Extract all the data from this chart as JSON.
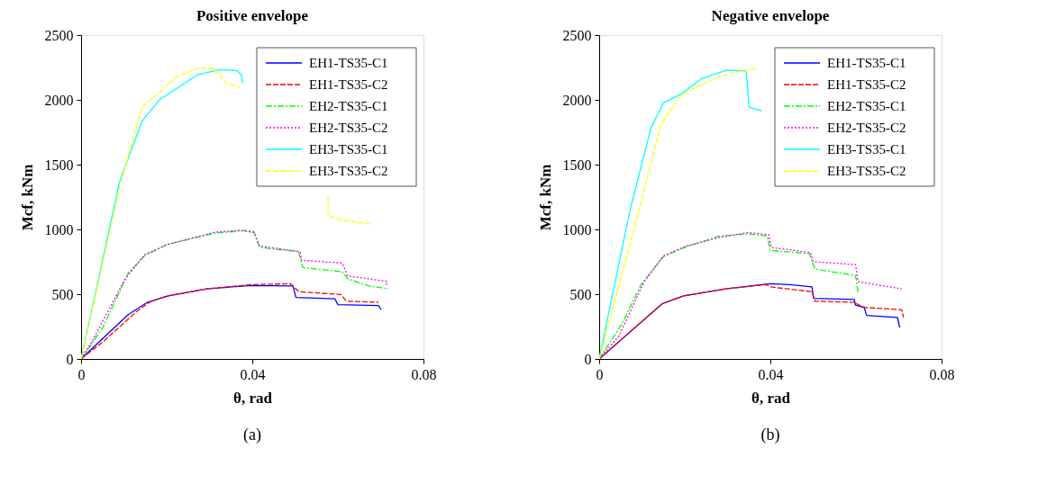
{
  "chart_data": [
    {
      "type": "line",
      "title": "Positive envelope",
      "xlabel": "θ, rad",
      "ylabel": "Mcf, kNm",
      "xlim": [
        0,
        0.08
      ],
      "xticks": [
        0,
        0.04,
        0.08
      ],
      "ylim": [
        0,
        2500
      ],
      "yticks": [
        0,
        500,
        1000,
        1500,
        2000,
        2500
      ],
      "grid": false,
      "legend": "top right",
      "annotations": [
        "(a)"
      ],
      "series": [
        {
          "name": "EH1-TS35-C1",
          "color": "#0000ff",
          "line_style": "solid",
          "x": [
            0,
            0.011,
            0.0155,
            0.0201,
            0.0293,
            0.0397,
            0.0495,
            0.0502,
            0.0593,
            0.06,
            0.0695,
            0.0701
          ],
          "values": [
            0,
            342,
            437,
            486,
            541,
            567,
            563,
            475,
            464,
            419,
            413,
            380
          ]
        },
        {
          "name": "EH1-TS35-C2",
          "color": "#ff0000",
          "line_style": "dashed",
          "x": [
            0,
            0.0051,
            0.0129,
            0.0162,
            0.0201,
            0.0293,
            0.0397,
            0.0489,
            0.0509,
            0.0607,
            0.062,
            0.0695
          ],
          "values": [
            0,
            132,
            364,
            442,
            486,
            541,
            574,
            581,
            519,
            497,
            446,
            437
          ]
        },
        {
          "name": "EH2-TS35-C1",
          "color": "#00ff00",
          "line_style": "dashdot",
          "x": [
            0,
            0.0051,
            0.011,
            0.0149,
            0.0201,
            0.0312,
            0.0391,
            0.0404,
            0.0417,
            0.0508,
            0.0518,
            0.061,
            0.0623,
            0.0672,
            0.0718
          ],
          "values": [
            0,
            243,
            662,
            799,
            883,
            971,
            993,
            982,
            861,
            828,
            706,
            673,
            618,
            565,
            541
          ]
        },
        {
          "name": "EH2-TS35-C2",
          "color": "#ff00ff",
          "line_style": "dotted",
          "x": [
            0,
            0.0025,
            0.0103,
            0.0149,
            0.0201,
            0.0312,
            0.037,
            0.0404,
            0.0417,
            0.0512,
            0.0515,
            0.061,
            0.0623,
            0.0714,
            0.0714
          ],
          "values": [
            0,
            132,
            618,
            806,
            883,
            978,
            993,
            976,
            872,
            828,
            762,
            740,
            640,
            600,
            563
          ]
        },
        {
          "name": "EH3-TS35-C1",
          "color": "#00ffff",
          "line_style": "solid",
          "x": [
            0,
            0.009,
            0.0142,
            0.0182,
            0.0273,
            0.0325,
            0.0365,
            0.0374,
            0.0378
          ],
          "values": [
            0,
            1369,
            1832,
            1998,
            2196,
            2234,
            2225,
            2196,
            2130
          ]
        },
        {
          "name": "EH3-TS35-C2",
          "color": "#ffff00",
          "line_style": "dashed",
          "x": [
            0,
            0.009,
            0.0142,
            0.0182,
            0.0221,
            0.0273,
            0.0312,
            0.0338,
            0.037,
            0.05,
            0.0577,
            0.0577,
            0.0613,
            0.0675
          ],
          "values": [
            0,
            1325,
            1943,
            2053,
            2174,
            2245,
            2241,
            2130,
            2097,
            null,
            1258,
            1104,
            1071,
            1042
          ]
        }
      ]
    },
    {
      "type": "line",
      "title": "Negative envelope",
      "xlabel": "θ, rad",
      "ylabel": "Mcf, kNm",
      "xlim": [
        0,
        0.08
      ],
      "xticks": [
        0,
        0.04,
        0.08
      ],
      "ylim": [
        0,
        2500
      ],
      "yticks": [
        0,
        500,
        1000,
        1500,
        2000,
        2500
      ],
      "grid": false,
      "legend": "top right",
      "annotations": [
        "(b)"
      ],
      "series": [
        {
          "name": "EH1-TS35-C1",
          "color": "#0000ff",
          "line_style": "solid",
          "x": [
            0,
            0.0147,
            0.0196,
            0.0295,
            0.0399,
            0.0445,
            0.0497,
            0.0501,
            0.0596,
            0.0599,
            0.0619,
            0.0625,
            0.0697,
            0.0702
          ],
          "values": [
            0,
            426,
            486,
            541,
            581,
            574,
            556,
            468,
            459,
            415,
            397,
            336,
            320,
            243
          ]
        },
        {
          "name": "EH1-TS35-C2",
          "color": "#ff0000",
          "line_style": "dashed",
          "x": [
            0,
            0.0147,
            0.0196,
            0.0295,
            0.039,
            0.0401,
            0.0497,
            0.0504,
            0.0599,
            0.0605,
            0.0622,
            0.0707,
            0.0711
          ],
          "values": [
            0,
            426,
            486,
            541,
            574,
            556,
            519,
            446,
            437,
            419,
            397,
            380,
            320
          ]
        },
        {
          "name": "EH2-TS35-C1",
          "color": "#00ff00",
          "line_style": "dashdot",
          "x": [
            0,
            0.0052,
            0.0098,
            0.015,
            0.0203,
            0.0281,
            0.0347,
            0.0393,
            0.0399,
            0.0491,
            0.0504,
            0.0543,
            0.0599,
            0.0605
          ],
          "values": [
            0,
            265,
            574,
            790,
            865,
            949,
            965,
            949,
            839,
            812,
            695,
            673,
            645,
            508
          ]
        },
        {
          "name": "EH2-TS35-C2",
          "color": "#ff00ff",
          "line_style": "dotted",
          "x": [
            0,
            0.0046,
            0.0105,
            0.015,
            0.0203,
            0.0281,
            0.0347,
            0.0396,
            0.0402,
            0.0494,
            0.05,
            0.0599,
            0.0605,
            0.0707
          ],
          "values": [
            0,
            177,
            596,
            795,
            872,
            938,
            976,
            960,
            861,
            821,
            751,
            728,
            596,
            541
          ]
        },
        {
          "name": "EH3-TS35-C1",
          "color": "#00ffff",
          "line_style": "solid",
          "x": [
            0,
            0.0072,
            0.0121,
            0.015,
            0.019,
            0.0239,
            0.0298,
            0.034,
            0.0344,
            0.035,
            0.038
          ],
          "values": [
            0,
            1148,
            1784,
            1976,
            2042,
            2163,
            2230,
            2223,
            2208,
            1943,
            1916
          ]
        },
        {
          "name": "EH3-TS35-C2",
          "color": "#ffff00",
          "line_style": "dashed",
          "x": [
            0,
            0.0079,
            0.0144,
            0.019,
            0.0229,
            0.0282,
            0.034,
            0.0367
          ],
          "values": [
            0,
            971,
            1810,
            2031,
            2102,
            2181,
            2230,
            2236
          ]
        }
      ]
    }
  ]
}
